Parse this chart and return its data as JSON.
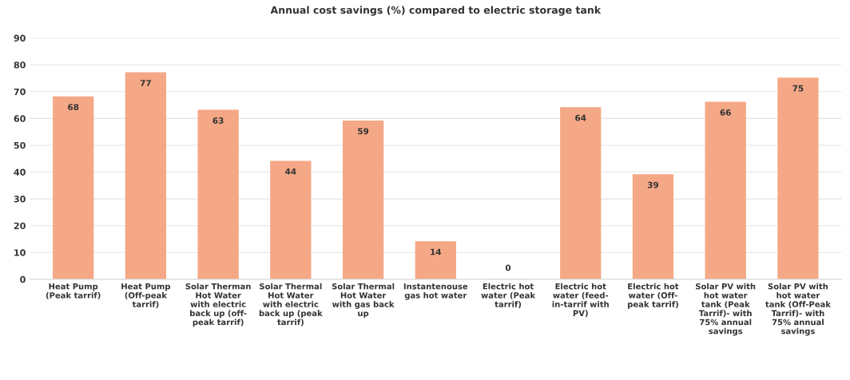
{
  "chart_data": {
    "type": "bar",
    "title": "Annual cost savings (%) compared to electric storage tank",
    "categories": [
      "Heat Pump\n(Peak tarrif)",
      "Heat Pump\n(Off-peak\ntarrif)",
      "Solar Therman\nHot Water\nwith electric\nback up (off-\npeak tarrif)",
      "Solar Thermal\nHot Water\nwith electric\nback up (peak\ntarrif)",
      "Solar Thermal\nHot Water\nwith gas back\nup",
      "Instantenouse\ngas hot water",
      "Electric hot\nwater (Peak\ntarrif)",
      "Electric hot\nwater (feed-\nin-tarrif with\nPV)",
      "Electric hot\nwater (Off-\npeak tarrif)",
      "Solar PV with\nhot water\ntank (Peak\nTarrif)- with\n75% annual\nsavings",
      "Solar PV with\nhot water\ntank (Off-Peak\nTarrif)- with\n75% annual\nsavings"
    ],
    "values": [
      68,
      77,
      63,
      44,
      59,
      14,
      0,
      64,
      39,
      66,
      75
    ],
    "color": "#f5a886",
    "ylim": [
      0,
      90
    ],
    "yticks": [
      0,
      10,
      20,
      30,
      40,
      50,
      60,
      70,
      80,
      90
    ],
    "grid": "y",
    "data_labels": true
  }
}
